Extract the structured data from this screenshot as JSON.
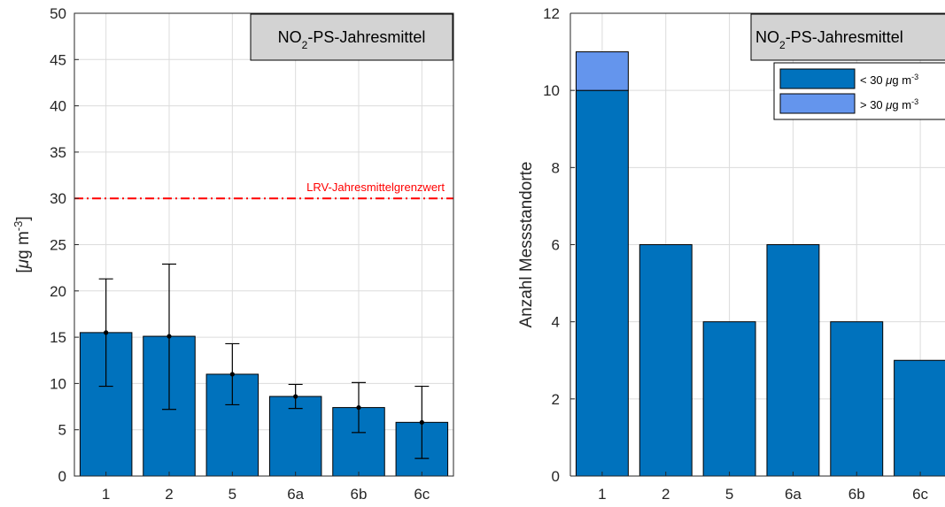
{
  "chart_data": [
    {
      "type": "bar",
      "title": "NO₂-PS-Jahresmittel",
      "title_parts": {
        "pre": "NO",
        "sub": "2",
        "post": "-PS-Jahresmittel"
      },
      "ylabel": "[µg m⁻³]",
      "ylabel_parts": {
        "pre": "[",
        "mu": "μ",
        "mid": "g m",
        "sup": "-3",
        "post": "]"
      },
      "xlabel": "",
      "categories": [
        "1",
        "2",
        "5",
        "6a",
        "6b",
        "6c"
      ],
      "values": [
        15.5,
        15.1,
        11.0,
        8.6,
        7.4,
        5.8
      ],
      "error_lower": [
        9.7,
        7.2,
        7.7,
        7.3,
        4.7,
        1.9
      ],
      "error_upper": [
        21.3,
        22.9,
        14.3,
        9.9,
        10.1,
        9.7
      ],
      "ylim": [
        0,
        50
      ],
      "yticks": [
        0,
        5,
        10,
        15,
        20,
        25,
        30,
        35,
        40,
        45,
        50
      ],
      "grid": true,
      "reference_line": {
        "value": 30,
        "label": "LRV-Jahresmittelgrenzwert",
        "color": "#ff0000"
      },
      "bar_color": "#0072bd"
    },
    {
      "type": "bar",
      "stacked": true,
      "title": "NO₂-PS-Jahresmittel",
      "title_parts": {
        "pre": "NO",
        "sub": "2",
        "post": "-PS-Jahresmittel"
      },
      "ylabel": "Anzahl Messstandorte",
      "xlabel": "",
      "categories": [
        "1",
        "2",
        "5",
        "6a",
        "6b",
        "6c"
      ],
      "series": [
        {
          "name": "< 30 µg m⁻³",
          "name_parts": {
            "pre": "< 30 ",
            "mu": "μ",
            "mid": "g m",
            "sup": "-3"
          },
          "values": [
            10,
            6,
            4,
            6,
            4,
            3
          ],
          "color": "#0072bd"
        },
        {
          "name": ">  30 µg m⁻³",
          "name_parts": {
            "pre": ">  30 ",
            "mu": "μ",
            "mid": "g m",
            "sup": "-3"
          },
          "values": [
            1,
            0,
            0,
            0,
            0,
            0
          ],
          "color": "#6495ed"
        }
      ],
      "ylim": [
        0,
        12
      ],
      "yticks": [
        0,
        2,
        4,
        6,
        8,
        10,
        12
      ],
      "grid": true,
      "legend": "top-right"
    }
  ]
}
